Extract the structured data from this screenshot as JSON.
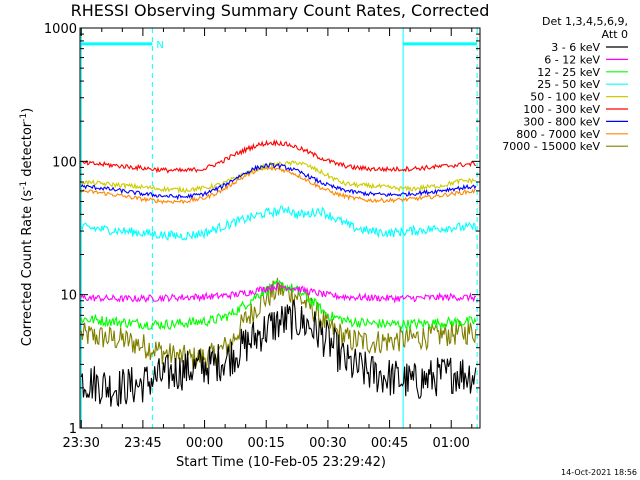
{
  "chart_data": {
    "type": "line",
    "title": "RHESSI Observing Summary Count Rates, Corrected",
    "xlabel": "Start Time (10-Feb-05 23:29:42)",
    "ylabel": "Corrected Count Rate (s",
    "ylabel_sup1": "-1",
    "ylabel_mid": " detector",
    "ylabel_sup2": "-1",
    "ylabel_end": ")",
    "yscale": "log",
    "ylim": [
      1,
      1000
    ],
    "xlim_minutes": [
      -0.3,
      97
    ],
    "x_ticks": [
      {
        "minutes": 0,
        "label": "23:30"
      },
      {
        "minutes": 15,
        "label": "23:45"
      },
      {
        "minutes": 30,
        "label": "00:00"
      },
      {
        "minutes": 45,
        "label": "00:15"
      },
      {
        "minutes": 60,
        "label": "00:30"
      },
      {
        "minutes": 75,
        "label": "00:45"
      },
      {
        "minutes": 90,
        "label": "01:00"
      }
    ],
    "y_ticks": [
      {
        "value": 1,
        "label": "1"
      },
      {
        "value": 10,
        "label": "10"
      },
      {
        "value": 100,
        "label": "100"
      },
      {
        "value": 1000,
        "label": "1000"
      }
    ],
    "legend_header": [
      "Det 1,3,4,5,6,9,",
      "Att 0"
    ],
    "night_intervals_minutes": [
      [
        0,
        17.3
      ],
      [
        78.3,
        96.3
      ]
    ],
    "night_bar_value": 760,
    "night_bar_label": "N",
    "timestamp": "14-Oct-2021 18:56",
    "series": [
      {
        "name": "3 - 6 keV",
        "color": "#000000",
        "x": [
          0,
          8,
          14,
          17,
          22,
          27,
          32,
          36,
          40,
          44,
          48,
          52,
          56,
          60,
          65,
          70,
          75,
          78,
          81,
          86,
          91,
          96
        ],
        "values": [
          2.3,
          2.0,
          2.1,
          2.3,
          2.6,
          2.8,
          3.0,
          3.4,
          4.2,
          5.3,
          6.2,
          6.5,
          5.8,
          4.5,
          3.0,
          2.6,
          2.4,
          2.3,
          2.2,
          2.4,
          2.6,
          2.5
        ]
      },
      {
        "name": "6 - 12 keV",
        "color": "#ff00ff",
        "x": [
          0,
          10,
          17,
          22,
          27,
          32,
          36,
          40,
          44,
          48,
          52,
          56,
          60,
          65,
          70,
          75,
          80,
          85,
          90,
          96
        ],
        "values": [
          9.5,
          9.3,
          9.4,
          9.5,
          9.6,
          9.7,
          9.9,
          10.3,
          11.0,
          11.6,
          11.2,
          10.5,
          9.9,
          9.6,
          9.5,
          9.4,
          9.4,
          9.5,
          9.6,
          9.5
        ]
      },
      {
        "name": "12 - 25 keV",
        "color": "#00ff00",
        "x": [
          0,
          10,
          17,
          22,
          27,
          32,
          36,
          40,
          44,
          48,
          52,
          56,
          60,
          65,
          70,
          75,
          80,
          85,
          90,
          96
        ],
        "values": [
          6.6,
          6.2,
          6.0,
          6.0,
          6.2,
          6.4,
          7.0,
          8.5,
          10.5,
          11.8,
          11.0,
          9.0,
          7.0,
          6.3,
          6.1,
          6.0,
          6.0,
          6.1,
          6.2,
          6.3
        ]
      },
      {
        "name": "25 - 50 keV",
        "color": "#00ffff",
        "x": [
          0,
          5,
          10,
          15,
          20,
          25,
          30,
          35,
          40,
          45,
          48,
          50,
          52,
          55,
          58,
          62,
          66,
          70,
          75,
          80,
          85,
          90,
          96
        ],
        "values": [
          32,
          31,
          30,
          29,
          28,
          27.5,
          29,
          33,
          37,
          41,
          42,
          45,
          40,
          40,
          43,
          37,
          32,
          30,
          29,
          30,
          31,
          32,
          32
        ]
      },
      {
        "name": "50 - 100 keV",
        "color": "#cccc00",
        "x": [
          0,
          5,
          10,
          15,
          20,
          25,
          30,
          34,
          38,
          42,
          46,
          50,
          53,
          56,
          60,
          64,
          68,
          72,
          76,
          80,
          84,
          88,
          92,
          96
        ],
        "values": [
          70,
          68,
          66,
          64,
          62,
          61,
          63,
          67,
          76,
          86,
          94,
          96,
          98,
          90,
          78,
          68,
          66,
          65,
          63,
          62,
          64,
          66,
          71,
          72
        ]
      },
      {
        "name": "100 - 300 keV",
        "color": "#ff0000",
        "x": [
          0,
          5,
          10,
          15,
          20,
          25,
          30,
          34,
          38,
          42,
          45,
          48,
          51,
          54,
          58,
          62,
          66,
          70,
          75,
          80,
          85,
          90,
          96
        ],
        "values": [
          97,
          95,
          92,
          89,
          86,
          85,
          88,
          99,
          115,
          130,
          137,
          138,
          132,
          122,
          107,
          96,
          90,
          88,
          87,
          88,
          90,
          93,
          96
        ]
      },
      {
        "name": "300 - 800 keV",
        "color": "#0000ff",
        "x": [
          0,
          5,
          10,
          15,
          20,
          25,
          30,
          34,
          38,
          42,
          45,
          48,
          51,
          54,
          58,
          62,
          66,
          70,
          75,
          80,
          85,
          90,
          96
        ],
        "values": [
          65,
          63,
          60,
          57,
          55,
          54,
          57,
          64,
          76,
          88,
          93,
          93,
          88,
          81,
          70,
          63,
          59,
          57,
          56,
          57,
          59,
          62,
          65
        ]
      },
      {
        "name": "800 - 7000 keV",
        "color": "#ff8800",
        "x": [
          0,
          5,
          10,
          15,
          20,
          25,
          30,
          34,
          38,
          42,
          45,
          48,
          51,
          54,
          58,
          62,
          66,
          70,
          75,
          80,
          85,
          90,
          96
        ],
        "values": [
          60,
          58,
          55,
          52,
          50,
          50,
          53,
          60,
          72,
          84,
          88,
          88,
          83,
          75,
          64,
          57,
          53,
          51,
          51,
          52,
          54,
          57,
          60
        ]
      },
      {
        "name": "7000 - 15000 keV",
        "color": "#808000",
        "x": [
          0,
          10,
          17,
          22,
          27,
          32,
          36,
          40,
          44,
          48,
          52,
          56,
          60,
          65,
          70,
          75,
          80,
          85,
          90,
          96
        ],
        "values": [
          5.0,
          4.6,
          4.0,
          3.5,
          3.3,
          3.5,
          4.2,
          6.5,
          9.0,
          11.0,
          10.0,
          8.0,
          5.8,
          4.6,
          4.4,
          4.5,
          4.7,
          4.9,
          5.1,
          5.3
        ]
      }
    ]
  }
}
